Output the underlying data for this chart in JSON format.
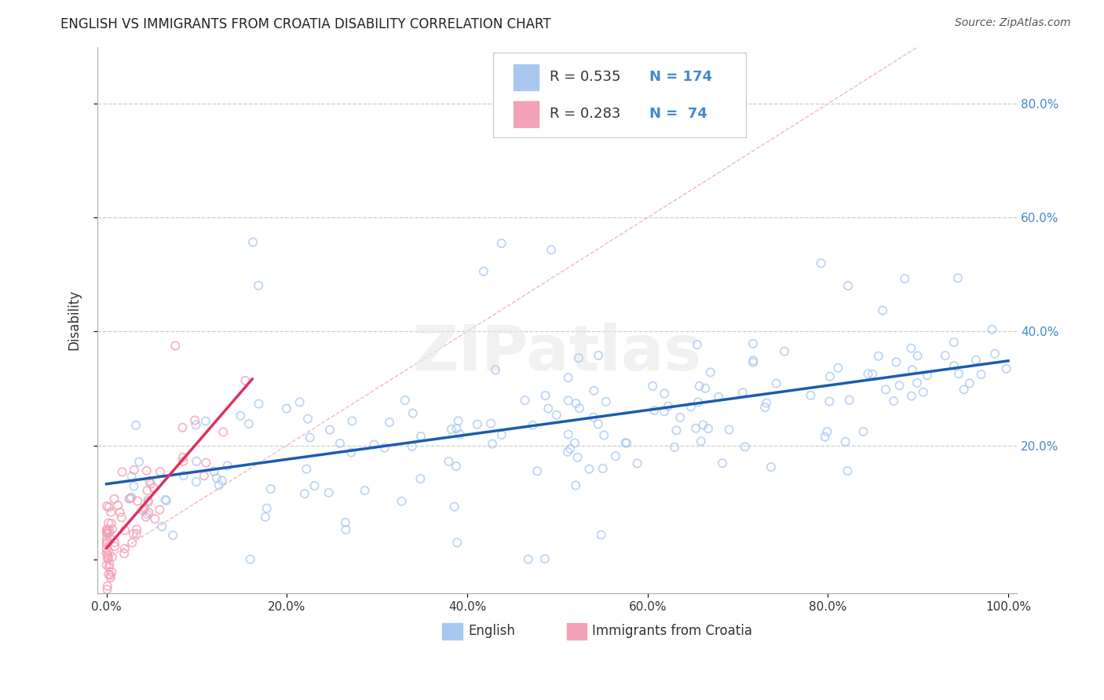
{
  "title": "ENGLISH VS IMMIGRANTS FROM CROATIA DISABILITY CORRELATION CHART",
  "source": "Source: ZipAtlas.com",
  "ylabel": "Disability",
  "watermark": "ZIPatlas",
  "r1": 0.535,
  "r2": 0.283,
  "n1": 174,
  "n2": 74,
  "color_english": "#A8C8F0",
  "color_croatia": "#F4A0B8",
  "color_english_line": "#1A5CB0",
  "color_croatia_line": "#E03060",
  "color_diagonal": "#F0B0C0",
  "background": "#FFFFFF",
  "grid_color": "#CCCCCC",
  "legend_label1": "English",
  "legend_label2": "Immigrants from Croatia",
  "ytick_color": "#4488CC",
  "title_color": "#222222",
  "source_color": "#555555"
}
